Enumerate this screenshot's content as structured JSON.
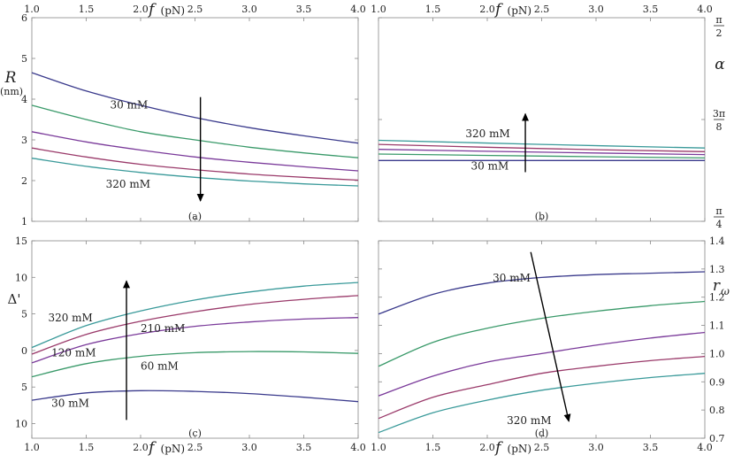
{
  "chart_data": [
    {
      "id": "a",
      "type": "line",
      "panel_label": "(a)",
      "xlabel": "f",
      "xlabel_unit": "(pN)",
      "ylabel": "R",
      "ylabel_unit": "(nm)",
      "xlim": [
        1.0,
        4.0
      ],
      "ylim": [
        1,
        6
      ],
      "x_ticks": [
        "1.0",
        "1.5",
        "2.0",
        "2.5",
        "3.0",
        "3.5",
        "4.0"
      ],
      "y_ticks": [
        "1",
        "2",
        "3",
        "4",
        "5",
        "6"
      ],
      "x": [
        1.0,
        1.5,
        2.0,
        2.5,
        3.0,
        3.5,
        4.0
      ],
      "series": [
        {
          "color": "#3a3a8c",
          "values": [
            4.65,
            4.2,
            3.85,
            3.55,
            3.3,
            3.1,
            2.92
          ]
        },
        {
          "color": "#3a9a6a",
          "values": [
            3.85,
            3.5,
            3.2,
            3.0,
            2.82,
            2.68,
            2.56
          ]
        },
        {
          "color": "#7a3a9a",
          "values": [
            3.2,
            2.95,
            2.75,
            2.58,
            2.45,
            2.34,
            2.24
          ]
        },
        {
          "color": "#9a3a6a",
          "values": [
            2.8,
            2.58,
            2.4,
            2.27,
            2.16,
            2.08,
            2.01
          ]
        },
        {
          "color": "#3a9a9a",
          "values": [
            2.55,
            2.35,
            2.2,
            2.08,
            1.99,
            1.92,
            1.87
          ]
        }
      ],
      "annotations": [
        {
          "text": "30 mM",
          "x": 1.72,
          "y": 3.77
        },
        {
          "text": "320 mM",
          "x": 1.68,
          "y": 1.83
        }
      ],
      "arrow": {
        "from": [
          2.55,
          4.05
        ],
        "to": [
          2.55,
          1.5
        ]
      }
    },
    {
      "id": "b",
      "type": "line",
      "panel_label": "(b)",
      "xlabel": "f",
      "xlabel_unit": "(pN)",
      "ylabel": "α",
      "ylim": [
        0.7854,
        1.5708
      ],
      "x_ticks": [
        "1.0",
        "1.5",
        "2.0",
        "2.5",
        "3.0",
        "3.5",
        "4.0"
      ],
      "y_ticks_right": [
        {
          "value": 1.5708,
          "num": "π",
          "den": "2"
        },
        {
          "value": 1.1781,
          "num": "3π",
          "den": "8"
        },
        {
          "value": 0.7854,
          "num": "π",
          "den": "4"
        }
      ],
      "xlim": [
        1.0,
        4.0
      ],
      "x": [
        1.0,
        2.5,
        4.0
      ],
      "series": [
        {
          "color": "#3a9a9a",
          "values": [
            1.098,
            1.082,
            1.068
          ]
        },
        {
          "color": "#9a3a6a",
          "values": [
            1.082,
            1.066,
            1.054
          ]
        },
        {
          "color": "#7a3a9a",
          "values": [
            1.063,
            1.052,
            1.043
          ]
        },
        {
          "color": "#3a9a6a",
          "values": [
            1.045,
            1.037,
            1.03
          ]
        },
        {
          "color": "#3a3a8c",
          "values": [
            1.02,
            1.02,
            1.02
          ]
        }
      ],
      "annotations": [
        {
          "text": "320 mM",
          "x": 1.8,
          "y": 1.11
        },
        {
          "text": "30 mM",
          "x": 1.85,
          "y": 0.985
        }
      ],
      "arrow": {
        "from": [
          2.35,
          0.975
        ],
        "to": [
          2.35,
          1.2
        ]
      }
    },
    {
      "id": "c",
      "type": "line",
      "panel_label": "(c)",
      "xlabel": "f",
      "xlabel_unit": "(pN)",
      "ylabel": "Δ'",
      "xlim": [
        1.0,
        4.0
      ],
      "ylim": [
        -12,
        15
      ],
      "x_ticks": [
        "1.0",
        "1.5",
        "2.0",
        "2.5",
        "3.0",
        "3.5",
        "4.0"
      ],
      "y_ticks": [
        {
          "value": 15,
          "label": "15"
        },
        {
          "value": 10,
          "label": "10"
        },
        {
          "value": 5,
          "label": "5"
        },
        {
          "value": 0,
          "label": "0"
        },
        {
          "value": -5,
          "label": "5"
        },
        {
          "value": -10,
          "label": "10"
        }
      ],
      "x": [
        1.0,
        1.5,
        2.0,
        2.5,
        3.0,
        3.5,
        4.0
      ],
      "series": [
        {
          "color": "#3a9a9a",
          "values": [
            0.4,
            3.4,
            5.4,
            6.9,
            8.0,
            8.8,
            9.3
          ]
        },
        {
          "color": "#9a3a6a",
          "values": [
            -0.5,
            2.2,
            4.0,
            5.3,
            6.3,
            7.0,
            7.5
          ]
        },
        {
          "color": "#7a3a9a",
          "values": [
            -1.7,
            0.8,
            2.3,
            3.3,
            3.9,
            4.3,
            4.5
          ]
        },
        {
          "color": "#3a9a6a",
          "values": [
            -3.6,
            -1.8,
            -0.8,
            -0.3,
            -0.15,
            -0.2,
            -0.4
          ]
        },
        {
          "color": "#3a3a8c",
          "values": [
            -6.8,
            -5.8,
            -5.5,
            -5.6,
            -5.9,
            -6.4,
            -7.0
          ]
        }
      ],
      "annotations": [
        {
          "text": "320 mM",
          "x": 1.15,
          "y": 4.0
        },
        {
          "text": "210 mM",
          "x": 2.0,
          "y": 2.5
        },
        {
          "text": "120 mM",
          "x": 1.18,
          "y": -0.8
        },
        {
          "text": "60 mM",
          "x": 2.0,
          "y": -2.6
        },
        {
          "text": "30 mM",
          "x": 1.18,
          "y": -7.7
        }
      ],
      "arrow": {
        "from": [
          1.87,
          -9.5
        ],
        "to": [
          1.87,
          9.5
        ]
      }
    },
    {
      "id": "d",
      "type": "line",
      "panel_label": "(d)",
      "xlabel": "f",
      "xlabel_unit": "(pN)",
      "ylabel": "r",
      "ylabel_sub": "ω",
      "xlim": [
        1.0,
        4.0
      ],
      "ylim": [
        0.7,
        1.4
      ],
      "x_ticks": [
        "1.0",
        "1.5",
        "2.0",
        "2.5",
        "3.0",
        "3.5",
        "4.0"
      ],
      "y_ticks_right": [
        "0.7",
        "0.8",
        "0.9",
        "1.0",
        "1.1",
        "1.2",
        "1.3",
        "1.4"
      ],
      "x": [
        1.0,
        1.5,
        2.0,
        2.5,
        3.0,
        3.5,
        4.0
      ],
      "series": [
        {
          "color": "#3a3a8c",
          "values": [
            1.14,
            1.21,
            1.25,
            1.27,
            1.28,
            1.285,
            1.29
          ]
        },
        {
          "color": "#3a9a6a",
          "values": [
            0.955,
            1.04,
            1.09,
            1.125,
            1.15,
            1.17,
            1.185
          ]
        },
        {
          "color": "#7a3a9a",
          "values": [
            0.85,
            0.92,
            0.97,
            1.0,
            1.03,
            1.055,
            1.075
          ]
        },
        {
          "color": "#9a3a6a",
          "values": [
            0.77,
            0.845,
            0.89,
            0.93,
            0.955,
            0.975,
            0.99
          ]
        },
        {
          "color": "#3a9a9a",
          "values": [
            0.72,
            0.79,
            0.835,
            0.87,
            0.895,
            0.915,
            0.93
          ]
        }
      ],
      "annotations": [
        {
          "text": "30 mM",
          "x": 2.05,
          "y": 1.255
        },
        {
          "text": "320 mM",
          "x": 2.18,
          "y": 0.75
        }
      ],
      "arrow": {
        "from": [
          2.4,
          1.36
        ],
        "to": [
          2.75,
          0.76
        ]
      }
    }
  ]
}
